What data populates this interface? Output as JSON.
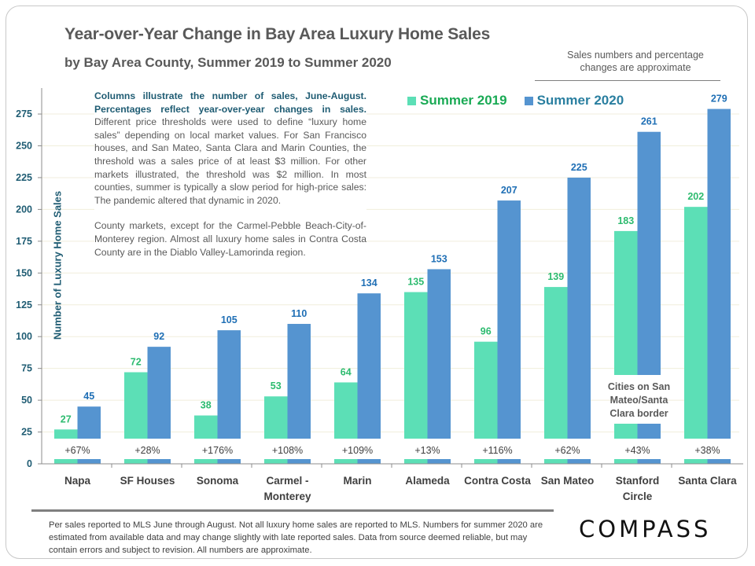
{
  "header": {
    "title": "Year-over-Year Change in Bay Area Luxury Home Sales",
    "subtitle": "by Bay Area County, Summer 2019 to Summer 2020",
    "approx_note": "Sales numbers and percentage changes are approximate"
  },
  "note": {
    "highlight": "Columns illustrate the number of sales, June-August. Percentages reflect year-over-year changes in sales.",
    "body": " Different price thresholds were used to define “luxury home sales” depending on local market values. For San Francisco houses, and San Mateo, Santa Clara and Marin Counties, the threshold was a sales price of at least $3 million. For other markets illustrated, the threshold was $2 million. In most counties, summer is typically a slow period for high-price sales: The pandemic altered that dynamic in 2020.",
    "paragraph2": "County markets, except for the Carmel-Pebble Beach-City-of-Monterey region. Almost all luxury home sales in Contra Costa County are in the Diablo Valley-Lamorinda region."
  },
  "colors": {
    "summer_2019": "#5cdfb6",
    "summer_2020": "#5594d0",
    "label_2019": "#2dbb6f",
    "label_2020": "#1f6fb5",
    "legend_2019_text": "#1aaa55",
    "legend_2020_text": "#2a7fa0",
    "axis_text": "#1f5c73",
    "grid": "#f1eedc"
  },
  "chart_data": {
    "type": "bar",
    "title": "Year-over-Year Change in Bay Area Luxury Home Sales",
    "subtitle": "by Bay Area County, Summer 2019 to Summer 2020",
    "xlabel": "",
    "ylabel": "Number of Luxury Home Sales",
    "ylim": [
      0,
      290
    ],
    "yticks": [
      0,
      25,
      50,
      75,
      100,
      125,
      150,
      175,
      200,
      225,
      250,
      275
    ],
    "grid": true,
    "legend_position": "top",
    "categories": [
      "Napa",
      "SF Houses",
      "Sonoma",
      "Carmel - Monterey",
      "Marin",
      "Alameda",
      "Contra Costa",
      "San Mateo",
      "Stanford Circle",
      "Santa Clara"
    ],
    "series": [
      {
        "name": "Summer 2019",
        "values": [
          27,
          72,
          38,
          53,
          64,
          135,
          96,
          139,
          183,
          202
        ]
      },
      {
        "name": "Summer 2020",
        "values": [
          45,
          92,
          105,
          110,
          134,
          153,
          207,
          225,
          261,
          279
        ]
      }
    ],
    "pct_change": [
      "+67%",
      "+28%",
      "+176%",
      "+108%",
      "+109%",
      "+13%",
      "+116%",
      "+62%",
      "+43%",
      "+38%"
    ],
    "annotations": [
      "Cities on San Mateo/Santa Clara border"
    ]
  },
  "footer": {
    "disclaimer": "Per sales reported to MLS June through August. Not all luxury home sales are reported to MLS. Numbers for summer 2020 are estimated from available data and may change slightly with late reported sales. Data from source deemed reliable, but may contain errors and subject to revision. All numbers are approximate.",
    "logo": "COMPASS"
  }
}
